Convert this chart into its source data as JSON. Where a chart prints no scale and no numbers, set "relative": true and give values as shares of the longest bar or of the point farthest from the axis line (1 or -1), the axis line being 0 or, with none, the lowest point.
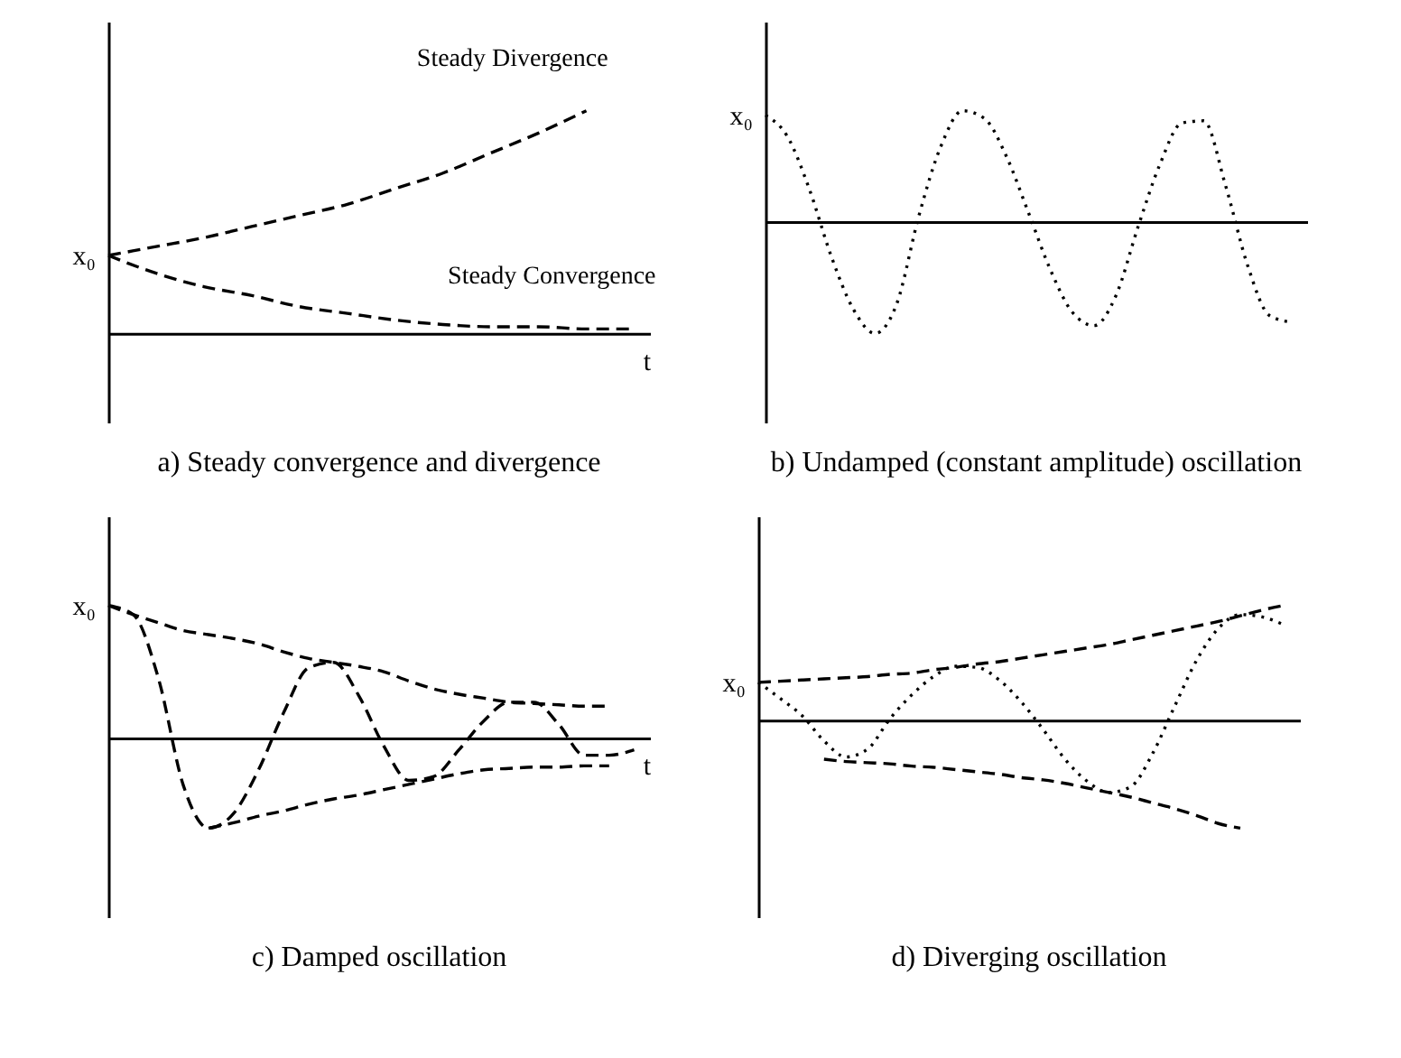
{
  "chart_data": [
    {
      "type": "line",
      "relative": true,
      "title": "a) Steady convergence and divergence",
      "xlabel": "t",
      "categories": [
        null,
        null,
        null,
        null,
        null,
        null,
        null,
        null,
        null,
        null,
        null,
        null
      ],
      "series": [
        {
          "name": "Steady Divergence",
          "color": "#000000",
          "line_style": "dashed",
          "values": [
            0.35,
            0.39,
            0.43,
            0.48,
            0.53,
            0.58,
            0.65,
            0.72,
            0.81,
            0.9,
            1.0,
            null
          ]
        },
        {
          "name": "Steady Convergence",
          "color": "#000000",
          "line_style": "dashed",
          "values": [
            0.35,
            0.27,
            0.21,
            0.17,
            0.12,
            0.09,
            0.06,
            0.04,
            0.03,
            0.03,
            0.02,
            0.02
          ]
        }
      ],
      "annotations": [
        "x₀"
      ]
    },
    {
      "type": "line",
      "relative": true,
      "title": "b) Undamped (constant amplitude) oscillation",
      "categories": [
        null,
        null,
        null,
        null,
        null,
        null,
        null,
        null,
        null,
        null,
        null,
        null,
        null,
        null,
        null,
        null,
        null,
        null,
        null,
        null,
        null,
        null,
        null,
        null,
        null
      ],
      "series": [
        {
          "color": "#000000",
          "line_style": "dotted",
          "values": [
            0.95,
            0.76,
            0.29,
            -0.31,
            -0.78,
            -1,
            -0.73,
            0.05,
            0.67,
            0.99,
            0.92,
            0.58,
            0.08,
            -0.43,
            -0.81,
            -0.93,
            -0.66,
            -0.05,
            0.51,
            0.88,
            0.9,
            0.32,
            -0.39,
            -0.84,
            -0.9
          ]
        }
      ],
      "annotations": [
        "x₀"
      ]
    },
    {
      "type": "line",
      "relative": true,
      "title": "c) Damped oscillation",
      "xlabel": "t",
      "categories": [
        null,
        null,
        null,
        null,
        null,
        null,
        null,
        null,
        null,
        null,
        null,
        null,
        null,
        null,
        null,
        null,
        null,
        null,
        null,
        null,
        null,
        null
      ],
      "series": [
        {
          "color": "#000000",
          "line_style": "dashed",
          "values": [
            1.0,
            0.93,
            0.45,
            -0.36,
            -0.68,
            -0.57,
            -0.24,
            0.19,
            0.53,
            0.57,
            0.32,
            -0.06,
            -0.32,
            -0.29,
            -0.09,
            0.13,
            0.27,
            0.27,
            0.1,
            -0.13,
            -0.13,
            -0.09
          ]
        },
        {
          "color": "#000000",
          "line_style": "dashed",
          "values": [
            1.0,
            0.93,
            0.87,
            0.81,
            0.78,
            0.75,
            0.71,
            0.65,
            0.6,
            0.57,
            0.54,
            0.5,
            0.43,
            0.37,
            0.33,
            0.3,
            0.27,
            0.26,
            0.25,
            0.24,
            0.24,
            null
          ]
        },
        {
          "color": "#000000",
          "line_style": "dashed",
          "values": [
            null,
            null,
            null,
            null,
            -0.68,
            -0.64,
            -0.59,
            -0.55,
            -0.5,
            -0.46,
            -0.43,
            -0.39,
            -0.35,
            -0.31,
            -0.27,
            -0.24,
            -0.23,
            -0.22,
            -0.22,
            -0.21,
            -0.21,
            null
          ]
        }
      ],
      "annotations": [
        "x₀"
      ]
    },
    {
      "type": "line",
      "relative": true,
      "title": "d) Diverging oscillation",
      "categories": [
        null,
        null,
        null,
        null,
        null,
        null,
        null,
        null,
        null,
        null,
        null,
        null,
        null,
        null,
        null,
        null,
        null,
        null,
        null,
        null,
        null,
        null,
        null,
        null,
        null
      ],
      "series": [
        {
          "color": "#000000",
          "line_style": "dotted",
          "values": [
            0.33,
            0.19,
            0.04,
            -0.18,
            -0.32,
            -0.25,
            0.01,
            0.22,
            0.38,
            0.47,
            0.46,
            0.35,
            0.16,
            -0.08,
            -0.34,
            -0.53,
            -0.63,
            -0.58,
            -0.29,
            0.12,
            0.52,
            0.8,
            0.92,
            0.9,
            0.83
          ]
        },
        {
          "color": "#000000",
          "line_style": "dashed",
          "values": [
            0.33,
            0.34,
            0.35,
            0.36,
            0.37,
            0.38,
            0.4,
            0.41,
            0.44,
            0.46,
            0.49,
            0.51,
            0.54,
            0.57,
            0.6,
            0.63,
            0.66,
            0.7,
            0.74,
            0.78,
            0.82,
            0.86,
            0.91,
            0.96,
            1.0
          ]
        },
        {
          "color": "#000000",
          "line_style": "dashed",
          "values": [
            null,
            null,
            null,
            -0.34,
            -0.36,
            -0.37,
            -0.38,
            -0.4,
            -0.41,
            -0.43,
            -0.45,
            -0.47,
            -0.5,
            -0.52,
            -0.55,
            -0.59,
            -0.63,
            -0.67,
            -0.72,
            -0.77,
            -0.83,
            -0.9,
            -0.94,
            null,
            null
          ]
        }
      ],
      "annotations": [
        "x₀"
      ]
    }
  ]
}
